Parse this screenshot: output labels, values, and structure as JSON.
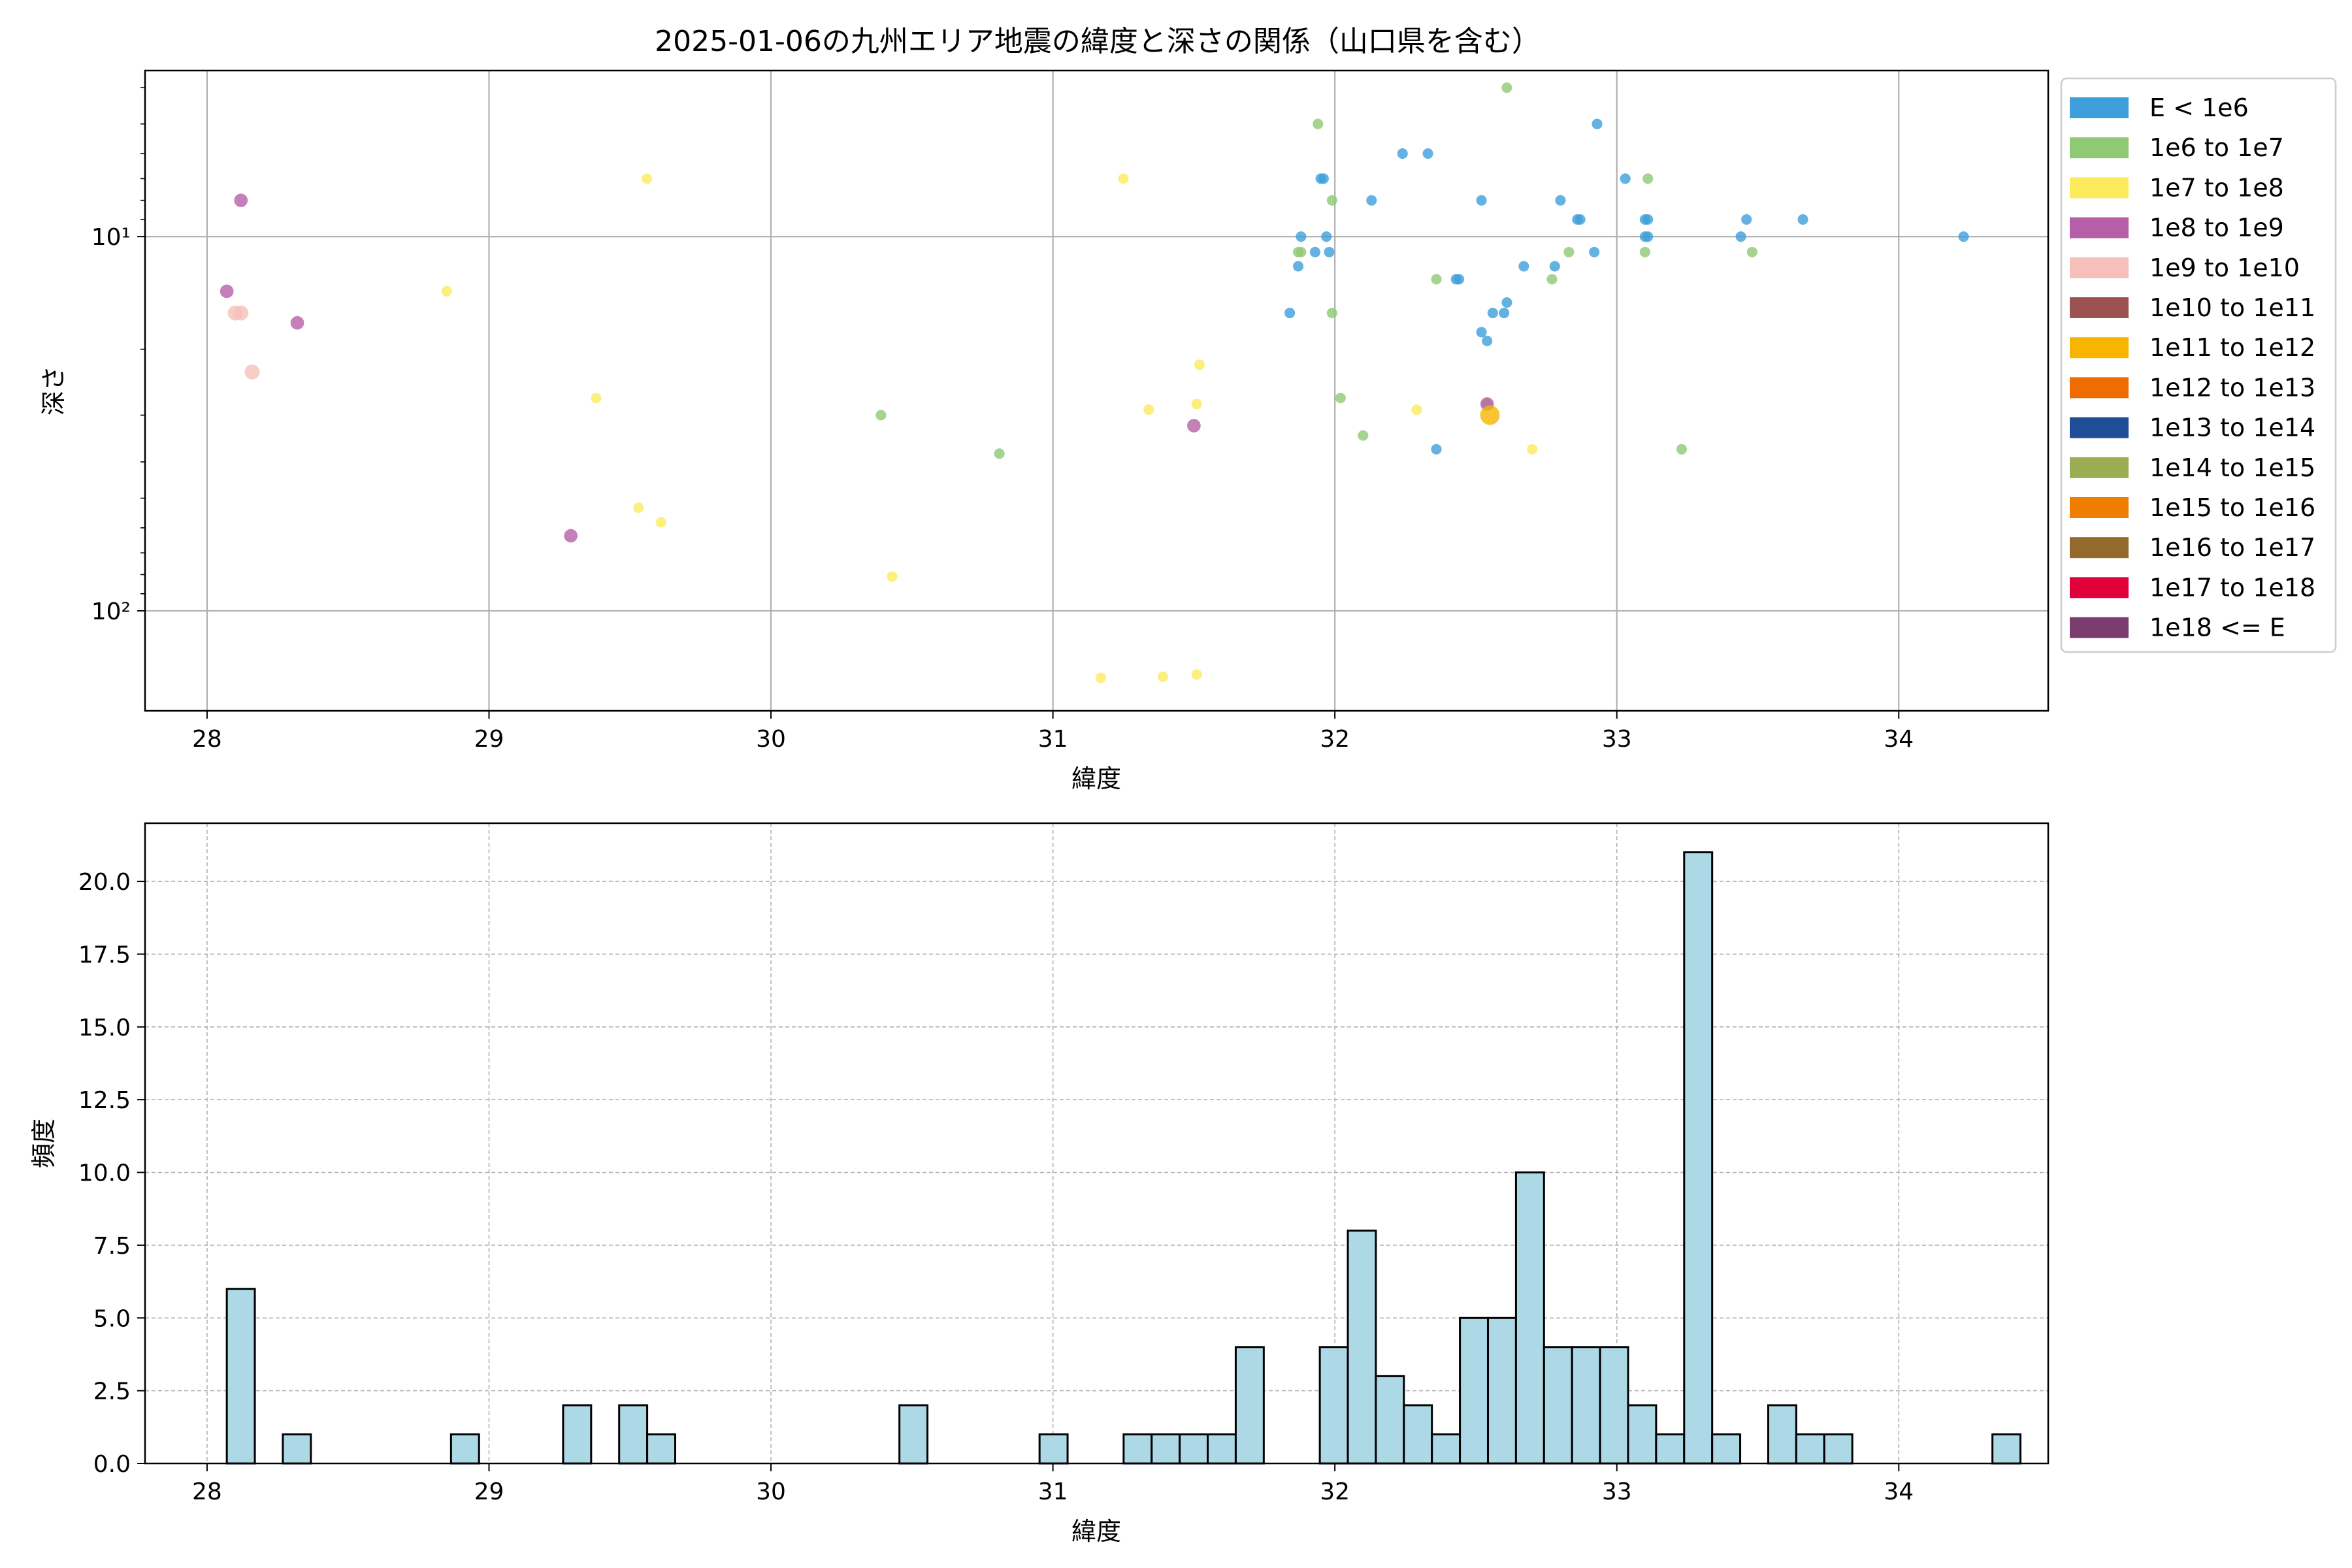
{
  "figure_title": "2025-01-06の九州エリア地震の緯度と深さの関係（山口県を含む）",
  "colors": {
    "hist_fill": "#add8e6",
    "hist_edge": "#000000",
    "grid": "#b0b0b0"
  },
  "chart_data": [
    {
      "type": "scatter",
      "title": "2025-01-06の九州エリア地震の緯度と深さの関係（山口県を含む）",
      "xlabel": "緯度",
      "ylabel": "深さ",
      "xlim": [
        27.78,
        34.53
      ],
      "ylim": [
        185,
        3.6
      ],
      "yscale": "log",
      "y_inverted": true,
      "grid": true,
      "legend_position": "outside-right",
      "x_ticks": [
        28,
        29,
        30,
        31,
        32,
        33,
        34
      ],
      "x_tick_labels": [
        "28",
        "29",
        "30",
        "31",
        "32",
        "33",
        "34"
      ],
      "y_ticks": [
        10,
        100
      ],
      "y_tick_labels": [
        "10¹",
        "10²"
      ],
      "legend": [
        {
          "label": "E < 1e6",
          "color": "#3d9fdb"
        },
        {
          "label": "1e6 to 1e7",
          "color": "#8fc975"
        },
        {
          "label": "1e7 to 1e8",
          "color": "#fdeb5c"
        },
        {
          "label": "1e8 to 1e9",
          "color": "#b65fa8"
        },
        {
          "label": "1e9 to 1e10",
          "color": "#f5c0b9"
        },
        {
          "label": "1e10 to 1e11",
          "color": "#9b5250"
        },
        {
          "label": "1e11 to 1e12",
          "color": "#f7b500"
        },
        {
          "label": "1e12 to 1e13",
          "color": "#ef6c00"
        },
        {
          "label": "1e13 to 1e14",
          "color": "#1f4e96"
        },
        {
          "label": "1e14 to 1e15",
          "color": "#9bad52"
        },
        {
          "label": "1e15 to 1e16",
          "color": "#ef7d00"
        },
        {
          "label": "1e16 to 1e17",
          "color": "#936a2c"
        },
        {
          "label": "1e17 to 1e18",
          "color": "#e0003a"
        },
        {
          "label": "1e18 <= E",
          "color": "#7b3d6f"
        }
      ],
      "series": [
        {
          "name": "E < 1e6",
          "color": "#3d9fdb",
          "size": 3.5,
          "points": [
            [
              31.84,
              16
            ],
            [
              31.87,
              12
            ],
            [
              31.88,
              10
            ],
            [
              31.93,
              11
            ],
            [
              31.95,
              7
            ],
            [
              31.96,
              7
            ],
            [
              31.97,
              10
            ],
            [
              31.98,
              11
            ],
            [
              32.13,
              8
            ],
            [
              32.24,
              6
            ],
            [
              32.33,
              6
            ],
            [
              32.36,
              37
            ],
            [
              32.43,
              13
            ],
            [
              32.44,
              13
            ],
            [
              32.52,
              8
            ],
            [
              32.52,
              18
            ],
            [
              32.54,
              19
            ],
            [
              32.56,
              16
            ],
            [
              32.6,
              16
            ],
            [
              32.61,
              15
            ],
            [
              32.67,
              12
            ],
            [
              32.78,
              12
            ],
            [
              32.8,
              8
            ],
            [
              32.86,
              9
            ],
            [
              32.87,
              9
            ],
            [
              32.92,
              11
            ],
            [
              32.93,
              5
            ],
            [
              33.03,
              7
            ],
            [
              33.1,
              9
            ],
            [
              33.1,
              10
            ],
            [
              33.11,
              10
            ],
            [
              33.11,
              9
            ],
            [
              33.44,
              10
            ],
            [
              33.46,
              9
            ],
            [
              33.66,
              9
            ],
            [
              34.23,
              10
            ]
          ]
        },
        {
          "name": "1e6 to 1e7",
          "color": "#8fc975",
          "size": 3.5,
          "points": [
            [
              30.39,
              30
            ],
            [
              30.81,
              38
            ],
            [
              31.87,
              11
            ],
            [
              31.88,
              11
            ],
            [
              31.94,
              5
            ],
            [
              31.99,
              8
            ],
            [
              31.99,
              16
            ],
            [
              32.02,
              27
            ],
            [
              32.1,
              34
            ],
            [
              32.36,
              13
            ],
            [
              32.54,
              28
            ],
            [
              32.61,
              4
            ],
            [
              32.77,
              13
            ],
            [
              32.83,
              11
            ],
            [
              33.1,
              11
            ],
            [
              33.11,
              7
            ],
            [
              33.23,
              37
            ],
            [
              33.48,
              11
            ]
          ]
        },
        {
          "name": "1e7 to 1e8",
          "color": "#fdeb5c",
          "size": 3.5,
          "points": [
            [
              28.85,
              14
            ],
            [
              29.38,
              27
            ],
            [
              29.53,
              53
            ],
            [
              29.56,
              7
            ],
            [
              29.61,
              58
            ],
            [
              30.43,
              81
            ],
            [
              31.17,
              151
            ],
            [
              31.25,
              7
            ],
            [
              31.34,
              29
            ],
            [
              31.39,
              150
            ],
            [
              31.51,
              148
            ],
            [
              31.51,
              28
            ],
            [
              31.52,
              22
            ],
            [
              32.29,
              29
            ],
            [
              32.7,
              37
            ]
          ]
        },
        {
          "name": "1e8 to 1e9",
          "color": "#b65fa8",
          "size": 4.5,
          "points": [
            [
              28.07,
              14
            ],
            [
              28.12,
              8
            ],
            [
              28.32,
              17
            ],
            [
              29.29,
              63
            ],
            [
              31.5,
              32
            ],
            [
              32.54,
              28
            ]
          ]
        },
        {
          "name": "1e9 to 1e10",
          "color": "#f5c0b9",
          "size": 5,
          "points": [
            [
              28.1,
              16
            ],
            [
              28.12,
              16
            ],
            [
              28.16,
              23
            ]
          ]
        },
        {
          "name": "1e11 to 1e12",
          "color": "#f7b500",
          "size": 6.5,
          "points": [
            [
              32.55,
              30
            ]
          ]
        }
      ]
    },
    {
      "type": "bar",
      "subtype": "histogram",
      "title": "",
      "xlabel": "緯度",
      "ylabel": "頻度",
      "xlim": [
        27.78,
        34.53
      ],
      "ylim": [
        0,
        22
      ],
      "grid": true,
      "x_ticks": [
        28,
        29,
        30,
        31,
        32,
        33,
        34
      ],
      "x_tick_labels": [
        "28",
        "29",
        "30",
        "31",
        "32",
        "33",
        "34"
      ],
      "y_ticks": [
        0,
        2.5,
        5,
        7.5,
        10,
        12.5,
        15,
        17.5,
        20
      ],
      "y_tick_labels": [
        "0.0",
        "2.5",
        "5.0",
        "7.5",
        "10.0",
        "12.5",
        "15.0",
        "17.5",
        "20.0"
      ],
      "bin_start": 28.07,
      "bin_width": 0.0994,
      "values": [
        6,
        0,
        1,
        0,
        0,
        0,
        0,
        0,
        1,
        0,
        0,
        0,
        2,
        0,
        2,
        1,
        0,
        0,
        0,
        0,
        0,
        0,
        0,
        0,
        2,
        0,
        0,
        0,
        0,
        1,
        0,
        0,
        1,
        1,
        1,
        1,
        4,
        0,
        0,
        4,
        8,
        3,
        2,
        1,
        5,
        5,
        10,
        4,
        4,
        4,
        2,
        1,
        21,
        1,
        0,
        2,
        1,
        1,
        0,
        0,
        0,
        0,
        0,
        1
      ]
    }
  ]
}
